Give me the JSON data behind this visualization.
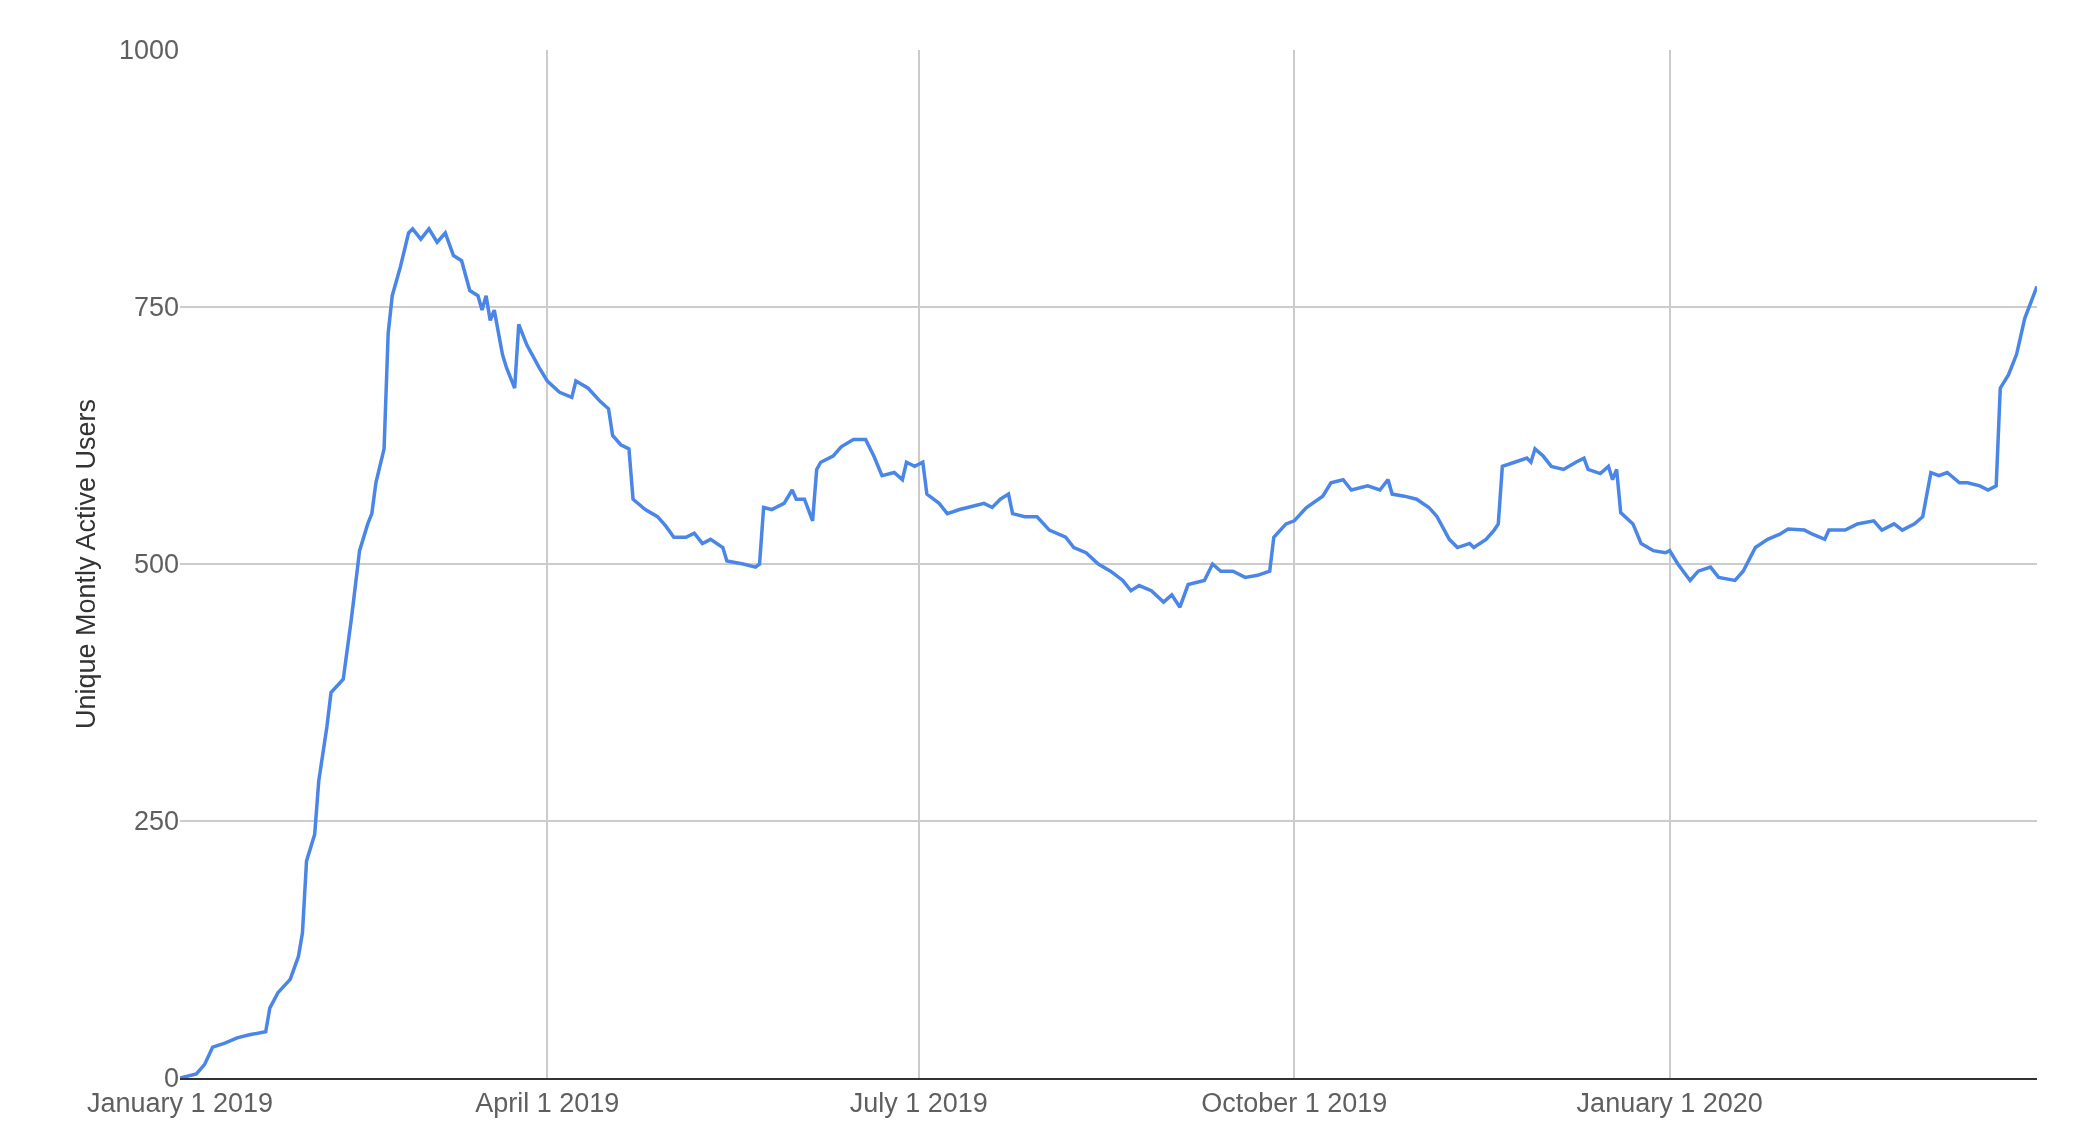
{
  "chart_data": {
    "type": "line",
    "ylabel": "Unique Montly Active Users",
    "x": [
      "2019-01-01",
      "2019-01-05",
      "2019-01-07",
      "2019-01-09",
      "2019-01-12",
      "2019-01-15",
      "2019-01-18",
      "2019-01-22",
      "2019-01-23",
      "2019-01-25",
      "2019-01-28",
      "2019-01-30",
      "2019-01-31",
      "2019-02-01",
      "2019-02-03",
      "2019-02-04",
      "2019-02-06",
      "2019-02-07",
      "2019-02-10",
      "2019-02-12",
      "2019-02-14",
      "2019-02-16",
      "2019-02-17",
      "2019-02-18",
      "2019-02-20",
      "2019-02-21",
      "2019-02-22",
      "2019-02-24",
      "2019-02-26",
      "2019-02-27",
      "2019-03-01",
      "2019-03-03",
      "2019-03-05",
      "2019-03-07",
      "2019-03-09",
      "2019-03-11",
      "2019-03-13",
      "2019-03-15",
      "2019-03-16",
      "2019-03-17",
      "2019-03-18",
      "2019-03-19",
      "2019-03-21",
      "2019-03-22",
      "2019-03-24",
      "2019-03-25",
      "2019-03-27",
      "2019-03-30",
      "2019-04-01",
      "2019-04-04",
      "2019-04-07",
      "2019-04-08",
      "2019-04-11",
      "2019-04-14",
      "2019-04-16",
      "2019-04-17",
      "2019-04-19",
      "2019-04-21",
      "2019-04-22",
      "2019-04-25",
      "2019-04-28",
      "2019-04-30",
      "2019-05-02",
      "2019-05-05",
      "2019-05-07",
      "2019-05-09",
      "2019-05-11",
      "2019-05-14",
      "2019-05-15",
      "2019-05-19",
      "2019-05-22",
      "2019-05-23",
      "2019-05-24",
      "2019-05-26",
      "2019-05-29",
      "2019-05-31",
      "2019-06-01",
      "2019-06-03",
      "2019-06-05",
      "2019-06-06",
      "2019-06-07",
      "2019-06-10",
      "2019-06-12",
      "2019-06-15",
      "2019-06-18",
      "2019-06-20",
      "2019-06-22",
      "2019-06-25",
      "2019-06-27",
      "2019-06-28",
      "2019-06-30",
      "2019-07-02",
      "2019-07-03",
      "2019-07-06",
      "2019-07-08",
      "2019-07-11",
      "2019-07-13",
      "2019-07-17",
      "2019-07-19",
      "2019-07-21",
      "2019-07-23",
      "2019-07-24",
      "2019-07-27",
      "2019-07-30",
      "2019-08-02",
      "2019-08-06",
      "2019-08-08",
      "2019-08-11",
      "2019-08-14",
      "2019-08-17",
      "2019-08-20",
      "2019-08-22",
      "2019-08-24",
      "2019-08-27",
      "2019-08-30",
      "2019-09-01",
      "2019-09-03",
      "2019-09-05",
      "2019-09-09",
      "2019-09-11",
      "2019-09-13",
      "2019-09-16",
      "2019-09-19",
      "2019-09-22",
      "2019-09-25",
      "2019-09-26",
      "2019-09-29",
      "2019-10-01",
      "2019-10-04",
      "2019-10-08",
      "2019-10-10",
      "2019-10-13",
      "2019-10-15",
      "2019-10-19",
      "2019-10-22",
      "2019-10-24",
      "2019-10-25",
      "2019-10-28",
      "2019-10-31",
      "2019-11-03",
      "2019-11-05",
      "2019-11-08",
      "2019-11-10",
      "2019-11-13",
      "2019-11-14",
      "2019-11-17",
      "2019-11-19",
      "2019-11-20",
      "2019-11-21",
      "2019-11-24",
      "2019-11-27",
      "2019-11-28",
      "2019-11-29",
      "2019-12-01",
      "2019-12-03",
      "2019-12-06",
      "2019-12-09",
      "2019-12-11",
      "2019-12-12",
      "2019-12-15",
      "2019-12-17",
      "2019-12-18",
      "2019-12-19",
      "2019-12-20",
      "2019-12-23",
      "2019-12-25",
      "2019-12-28",
      "2019-12-31",
      "2020-01-01",
      "2020-01-03",
      "2020-01-06",
      "2020-01-08",
      "2020-01-11",
      "2020-01-13",
      "2020-01-17",
      "2020-01-19",
      "2020-01-22",
      "2020-01-25",
      "2020-01-28",
      "2020-01-30",
      "2020-02-03",
      "2020-02-05",
      "2020-02-08",
      "2020-02-09",
      "2020-02-13",
      "2020-02-16",
      "2020-02-20",
      "2020-02-22",
      "2020-02-25",
      "2020-02-27",
      "2020-03-01",
      "2020-03-03",
      "2020-03-05",
      "2020-03-07",
      "2020-03-09",
      "2020-03-12",
      "2020-03-14",
      "2020-03-17",
      "2020-03-19",
      "2020-03-21",
      "2020-03-22",
      "2020-03-24",
      "2020-03-26",
      "2020-03-28",
      "2020-03-31"
    ],
    "series": [
      {
        "color": "#4a86e8",
        "values": [
          0,
          4,
          13,
          30,
          34,
          39,
          42,
          45,
          68,
          83,
          96,
          118,
          141,
          211,
          237,
          289,
          342,
          375,
          388,
          447,
          513,
          539,
          549,
          579,
          612,
          724,
          761,
          789,
          822,
          826,
          816,
          826,
          813,
          822,
          800,
          795,
          766,
          761,
          747,
          761,
          737,
          747,
          704,
          691,
          671,
          733,
          713,
          691,
          678,
          667,
          662,
          678,
          671,
          658,
          651,
          625,
          616,
          612,
          563,
          553,
          546,
          537,
          526,
          526,
          530,
          520,
          524,
          516,
          503,
          500,
          497,
          500,
          555,
          553,
          559,
          572,
          563,
          563,
          542,
          592,
          599,
          605,
          614,
          621,
          621,
          605,
          586,
          589,
          582,
          599,
          595,
          599,
          568,
          559,
          549,
          553,
          555,
          559,
          555,
          563,
          568,
          549,
          546,
          546,
          533,
          526,
          516,
          511,
          500,
          493,
          484,
          474,
          479,
          474,
          463,
          470,
          458,
          480,
          484,
          500,
          493,
          493,
          487,
          489,
          493,
          526,
          539,
          542,
          555,
          566,
          579,
          582,
          572,
          576,
          572,
          582,
          568,
          566,
          563,
          555,
          546,
          524,
          516,
          520,
          516,
          524,
          533,
          539,
          595,
          599,
          603,
          599,
          612,
          605,
          595,
          592,
          599,
          603,
          592,
          588,
          595,
          582,
          592,
          550,
          539,
          520,
          513,
          511,
          513,
          500,
          484,
          493,
          497,
          487,
          484,
          493,
          516,
          524,
          529,
          534,
          533,
          529,
          524,
          533,
          533,
          539,
          542,
          533,
          539,
          533,
          539,
          546,
          589,
          586,
          589,
          579,
          579,
          576,
          572,
          576,
          671,
          684,
          704,
          739,
          770
        ]
      }
    ],
    "xlim": [
      "2019-01-01",
      "2020-03-31"
    ],
    "xticks": [
      {
        "value": "2019-01-01",
        "label": "January 1 2019"
      },
      {
        "value": "2019-04-01",
        "label": "April 1 2019"
      },
      {
        "value": "2019-07-01",
        "label": "July 1 2019"
      },
      {
        "value": "2019-10-01",
        "label": "October 1 2019"
      },
      {
        "value": "2020-01-01",
        "label": "January 1 2020"
      }
    ],
    "ylim": [
      0,
      1000
    ],
    "yticks": [
      0,
      250,
      500,
      750,
      1000
    ],
    "grid": true,
    "marker": "none",
    "line_style": "solid"
  }
}
